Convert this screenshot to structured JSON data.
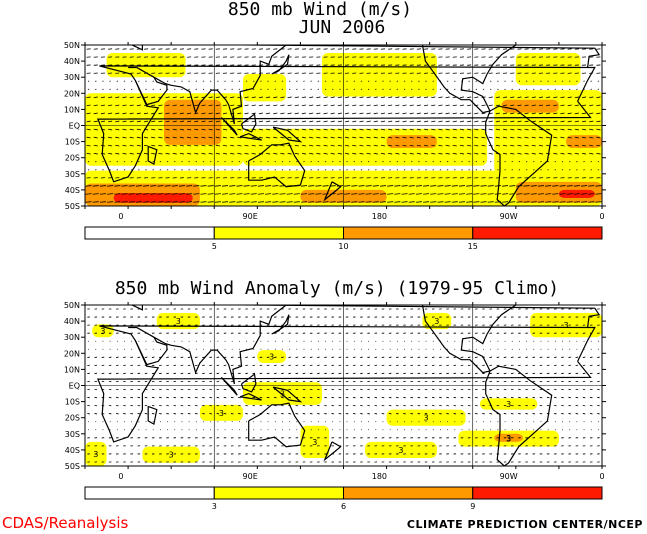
{
  "chart_data": [
    {
      "type": "heatmap",
      "title": "850 mb Wind (m/s)",
      "subtitle": "JUN 2006",
      "ytick_labels": [
        "50N",
        "40N",
        "30N",
        "20N",
        "10N",
        "EQ",
        "10S",
        "20S",
        "30S",
        "40S",
        "50S"
      ],
      "xtick_labels": [
        "0",
        "90E",
        "180",
        "90W",
        "0"
      ],
      "xlim": [
        0,
        360
      ],
      "ylim": [
        -50,
        50
      ],
      "colorbar": {
        "colors": [
          "#ffffff",
          "#ffff00",
          "#ff9900",
          "#ff1a00"
        ],
        "tick_labels": [
          "5",
          "10",
          "15"
        ]
      },
      "shaded_regions": [
        {
          "level": 1,
          "lon": [
            0,
            360
          ],
          "lat": [
            -50,
            -28
          ]
        },
        {
          "level": 1,
          "lon": [
            0,
            110
          ],
          "lat": [
            -25,
            20
          ]
        },
        {
          "level": 1,
          "lon": [
            110,
            280
          ],
          "lat": [
            -25,
            -2
          ]
        },
        {
          "level": 1,
          "lon": [
            285,
            360
          ],
          "lat": [
            -30,
            22
          ]
        },
        {
          "level": 1,
          "lon": [
            15,
            70
          ],
          "lat": [
            30,
            45
          ]
        },
        {
          "level": 1,
          "lon": [
            110,
            140
          ],
          "lat": [
            15,
            32
          ]
        },
        {
          "level": 1,
          "lon": [
            165,
            245
          ],
          "lat": [
            18,
            45
          ]
        },
        {
          "level": 1,
          "lon": [
            300,
            345
          ],
          "lat": [
            25,
            45
          ]
        },
        {
          "level": 2,
          "lon": [
            0,
            80
          ],
          "lat": [
            -50,
            -36
          ]
        },
        {
          "level": 2,
          "lon": [
            150,
            210
          ],
          "lat": [
            -48,
            -40
          ]
        },
        {
          "level": 2,
          "lon": [
            300,
            360
          ],
          "lat": [
            -48,
            -35
          ]
        },
        {
          "level": 2,
          "lon": [
            55,
            95
          ],
          "lat": [
            -12,
            16
          ]
        },
        {
          "level": 2,
          "lon": [
            210,
            245
          ],
          "lat": [
            -14,
            -6
          ]
        },
        {
          "level": 2,
          "lon": [
            290,
            330
          ],
          "lat": [
            8,
            16
          ]
        },
        {
          "level": 2,
          "lon": [
            335,
            360
          ],
          "lat": [
            -14,
            -6
          ]
        },
        {
          "level": 3,
          "lon": [
            20,
            75
          ],
          "lat": [
            -48,
            -42
          ]
        },
        {
          "level": 3,
          "lon": [
            330,
            355
          ],
          "lat": [
            -45,
            -40
          ]
        }
      ]
    },
    {
      "type": "heatmap",
      "title": "850 mb Wind Anomaly (m/s) (1979-95 Climo)",
      "ytick_labels": [
        "50N",
        "40N",
        "30N",
        "20N",
        "10N",
        "EQ",
        "10S",
        "20S",
        "30S",
        "40S",
        "50S"
      ],
      "xtick_labels": [
        "0",
        "90E",
        "180",
        "90W",
        "0"
      ],
      "xlim": [
        0,
        360
      ],
      "ylim": [
        -50,
        50
      ],
      "colorbar": {
        "colors": [
          "#ffffff",
          "#ffff00",
          "#ff9900",
          "#ff1a00"
        ],
        "tick_labels": [
          "3",
          "6",
          "9"
        ]
      },
      "contour_label": "3",
      "shaded_regions": [
        {
          "level": 1,
          "lon": [
            0,
            15
          ],
          "lat": [
            -50,
            -35
          ]
        },
        {
          "level": 1,
          "lon": [
            40,
            80
          ],
          "lat": [
            -48,
            -38
          ]
        },
        {
          "level": 1,
          "lon": [
            80,
            110
          ],
          "lat": [
            -22,
            -12
          ]
        },
        {
          "level": 1,
          "lon": [
            110,
            165
          ],
          "lat": [
            -12,
            2
          ]
        },
        {
          "level": 1,
          "lon": [
            150,
            170
          ],
          "lat": [
            -45,
            -25
          ]
        },
        {
          "level": 1,
          "lon": [
            195,
            245
          ],
          "lat": [
            -45,
            -35
          ]
        },
        {
          "level": 1,
          "lon": [
            210,
            265
          ],
          "lat": [
            -25,
            -15
          ]
        },
        {
          "level": 1,
          "lon": [
            260,
            330
          ],
          "lat": [
            -38,
            -28
          ]
        },
        {
          "level": 1,
          "lon": [
            275,
            315
          ],
          "lat": [
            -15,
            -8
          ]
        },
        {
          "level": 1,
          "lon": [
            310,
            360
          ],
          "lat": [
            30,
            45
          ]
        },
        {
          "level": 1,
          "lon": [
            50,
            80
          ],
          "lat": [
            35,
            45
          ]
        },
        {
          "level": 1,
          "lon": [
            235,
            255
          ],
          "lat": [
            35,
            45
          ]
        },
        {
          "level": 1,
          "lon": [
            5,
            20
          ],
          "lat": [
            30,
            38
          ]
        },
        {
          "level": 1,
          "lon": [
            120,
            140
          ],
          "lat": [
            14,
            22
          ]
        },
        {
          "level": 2,
          "lon": [
            285,
            305
          ],
          "lat": [
            -35,
            -30
          ]
        }
      ]
    }
  ],
  "footer": {
    "left": "CDAS/Reanalysis",
    "right": "CLIMATE PREDICTION CENTER/NCEP"
  }
}
